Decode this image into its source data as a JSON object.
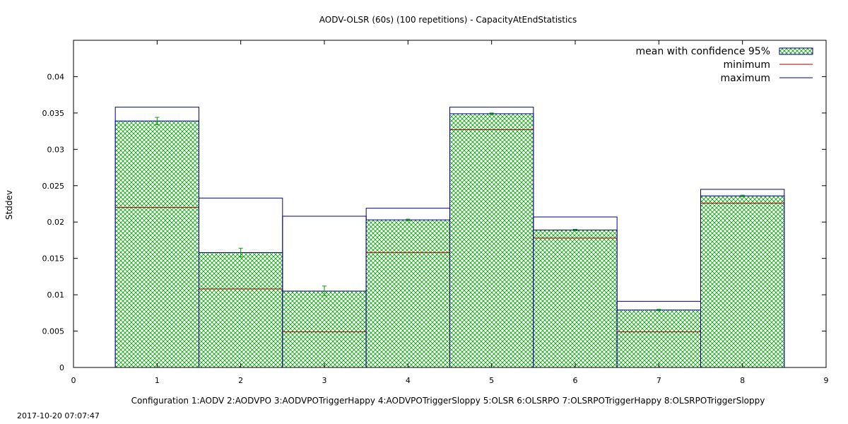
{
  "chart_data": {
    "type": "bar",
    "title": "AODV-OLSR (60s) (100 repetitions) - CapacityAtEndStatistics",
    "xlabel": "Configuration 1:AODV  2:AODVPO  3:AODVPOTriggerHappy  4:AODVPOTriggerSloppy  5:OLSR  6:OLSRPO  7:OLSRPOTriggerHappy  8:OLSRPOTriggerSloppy",
    "ylabel": "Stddev",
    "xlim": [
      0,
      9
    ],
    "ylim": [
      0,
      0.045
    ],
    "xticks": [
      "0",
      "1",
      "2",
      "3",
      "4",
      "5",
      "6",
      "7",
      "8",
      "9"
    ],
    "yticks": [
      "0",
      "0.005",
      "0.01",
      "0.015",
      "0.02",
      "0.025",
      "0.03",
      "0.035",
      "0.04"
    ],
    "categories": [
      1,
      2,
      3,
      4,
      5,
      6,
      7,
      8
    ],
    "series": [
      {
        "name": "mean with confidence 95%",
        "values": [
          0.0339,
          0.0158,
          0.0105,
          0.0203,
          0.0349,
          0.0189,
          0.0079,
          0.0236
        ],
        "ci_low": [
          0.0334,
          0.0152,
          0.0099,
          0.0202,
          0.0348,
          0.0188,
          0.0078,
          0.0235
        ],
        "ci_high": [
          0.0344,
          0.0164,
          0.0112,
          0.0204,
          0.035,
          0.019,
          0.008,
          0.0237
        ]
      },
      {
        "name": "minimum",
        "values": [
          0.022,
          0.0108,
          0.0049,
          0.0158,
          0.0327,
          0.0178,
          0.0049,
          0.0226
        ]
      },
      {
        "name": "maximum",
        "values": [
          0.0358,
          0.0233,
          0.0208,
          0.0219,
          0.0358,
          0.0207,
          0.0091,
          0.0245
        ]
      }
    ],
    "legend_position": "top-right",
    "grid": false,
    "colors": {
      "mean_hatch": "#00a000",
      "minimum": "#a00000",
      "maximum": "#000080"
    }
  },
  "footer": {
    "timestamp": "2017-10-20 07:07:47"
  }
}
